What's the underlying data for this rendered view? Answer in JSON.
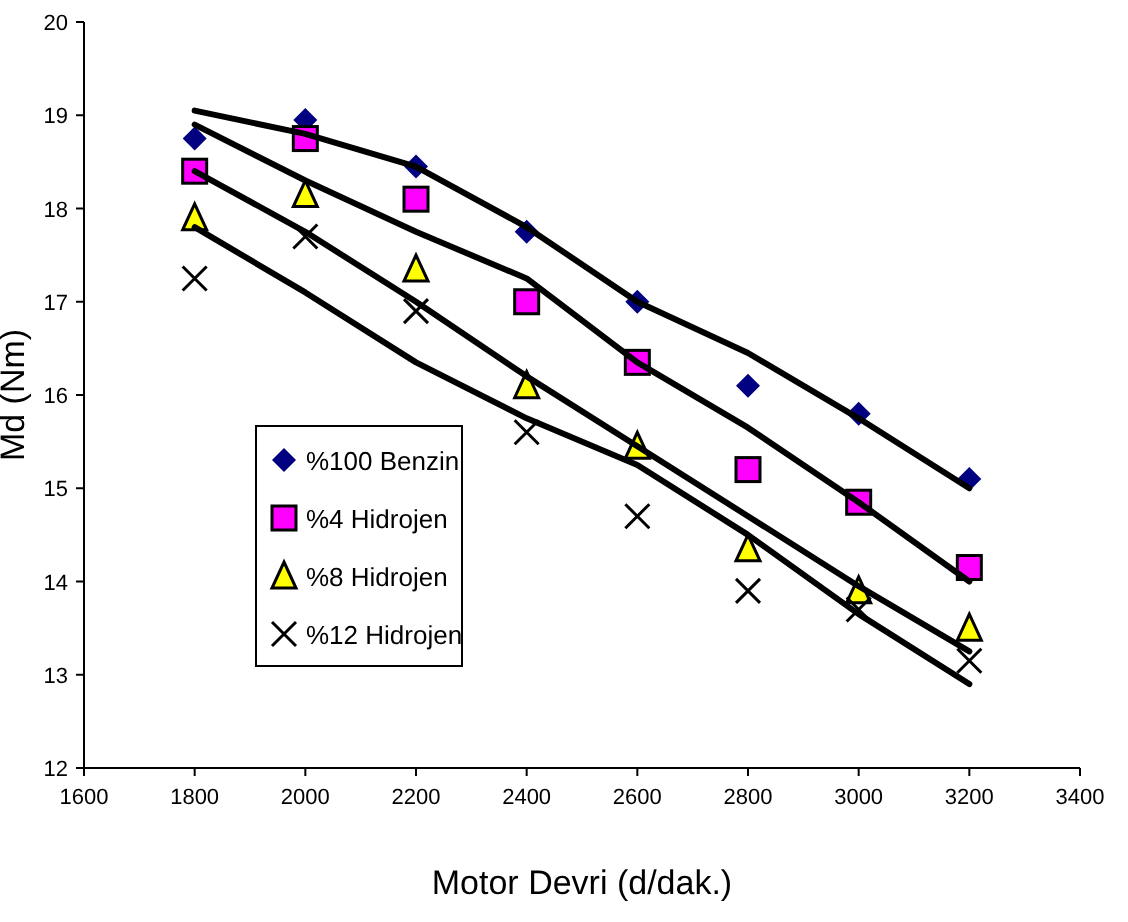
{
  "chart_data": {
    "type": "scatter",
    "xlabel": "Motor Devri (d/dak.)",
    "ylabel": "Md (Nm)",
    "xlim": [
      1600,
      3400
    ],
    "xticks": [
      1600,
      1800,
      2000,
      2200,
      2400,
      2600,
      2800,
      3000,
      3200,
      3400
    ],
    "ylim": [
      12,
      20
    ],
    "yticks": [
      12,
      13,
      14,
      15,
      16,
      17,
      18,
      19,
      20
    ],
    "grid": false,
    "legend": "left",
    "x": [
      1800,
      2000,
      2200,
      2400,
      2600,
      2800,
      3000,
      3200
    ],
    "series": [
      {
        "name": "%100 Benzin",
        "color": "#000080",
        "marker": "diamond",
        "values": [
          18.75,
          18.95,
          18.45,
          17.75,
          17.0,
          16.1,
          15.8,
          15.1
        ]
      },
      {
        "name": "%4 Hidrojen",
        "color": "#ff00ff",
        "marker": "square",
        "values": [
          18.4,
          18.75,
          18.1,
          17.0,
          16.35,
          15.2,
          14.85,
          14.15
        ]
      },
      {
        "name": "%8 Hidrojen",
        "color": "#ffff00",
        "marker": "triangle",
        "values": [
          17.9,
          18.15,
          17.35,
          16.1,
          15.45,
          14.35,
          13.9,
          13.5
        ]
      },
      {
        "name": "%12 Hidrojen",
        "color": "#000000",
        "marker": "cross",
        "values": [
          17.25,
          17.7,
          16.9,
          15.6,
          14.7,
          13.9,
          13.7,
          13.15
        ]
      },
      {
        "type": "line",
        "color": "#000000",
        "line_style": "solid",
        "marker": "none",
        "values": [
          19.05,
          18.8,
          18.45,
          17.8,
          17.0,
          16.45,
          15.75,
          15.0
        ]
      },
      {
        "type": "line",
        "color": "#000000",
        "line_style": "solid",
        "marker": "none",
        "values": [
          18.9,
          18.3,
          17.75,
          17.25,
          16.35,
          15.65,
          14.85,
          14.0
        ]
      },
      {
        "type": "line",
        "color": "#000000",
        "line_style": "solid",
        "marker": "none",
        "values": [
          18.4,
          17.75,
          17.0,
          16.2,
          15.45,
          14.7,
          13.95,
          13.25
        ]
      },
      {
        "type": "line",
        "color": "#000000",
        "line_style": "solid",
        "marker": "none",
        "values": [
          17.8,
          17.1,
          16.35,
          15.75,
          15.25,
          14.5,
          13.65,
          12.9
        ]
      }
    ]
  }
}
